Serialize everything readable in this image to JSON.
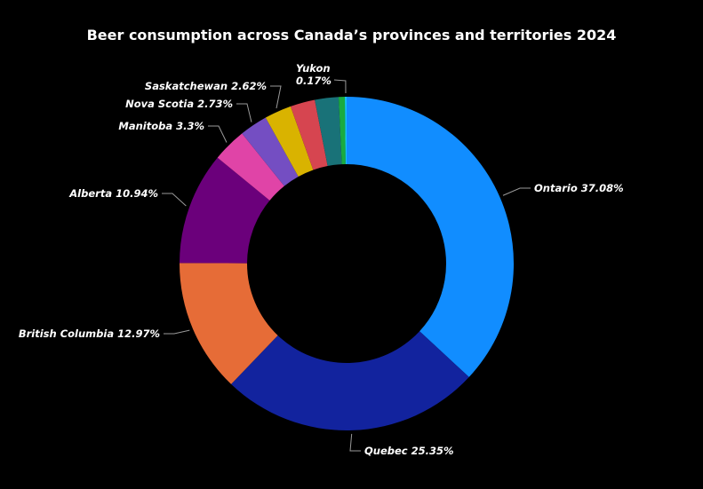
{
  "chart_data": {
    "type": "pie",
    "variant": "donut",
    "title": "Beer consumption across Canada’s provinces and territories 2024",
    "slices": [
      {
        "name": "Ontario",
        "value": 37.08,
        "label": "Ontario 37.08%",
        "color": "#118DFF"
      },
      {
        "name": "Quebec",
        "value": 25.35,
        "label": "Quebec 25.35%",
        "color": "#12239E"
      },
      {
        "name": "British Columbia",
        "value": 12.97,
        "label": "British Columbia 12.97%",
        "color": "#E66C37"
      },
      {
        "name": "Alberta",
        "value": 10.94,
        "label": "Alberta 10.94%",
        "color": "#6B007B"
      },
      {
        "name": "Manitoba",
        "value": 3.3,
        "label": "Manitoba 3.3%",
        "color": "#E044A7"
      },
      {
        "name": "Nova Scotia",
        "value": 2.73,
        "label": "Nova Scotia 2.73%",
        "color": "#744EC2"
      },
      {
        "name": "Saskatchewan",
        "value": 2.62,
        "label": "Saskatchewan 2.62%",
        "color": "#D9B300"
      },
      {
        "name": "",
        "value": 2.4,
        "label": "",
        "color": "#D64550"
      },
      {
        "name": "",
        "value": 2.3,
        "label": "",
        "color": "#197278"
      },
      {
        "name": "",
        "value": 0.6,
        "label": "",
        "color": "#1AAB40"
      },
      {
        "name": "Yukon",
        "value": 0.17,
        "label": "Yukon 0.17%",
        "label_lines": [
          "Yukon",
          "0.17%"
        ],
        "color": "#15C6F4"
      }
    ],
    "legend": "none",
    "background": "#000000"
  }
}
